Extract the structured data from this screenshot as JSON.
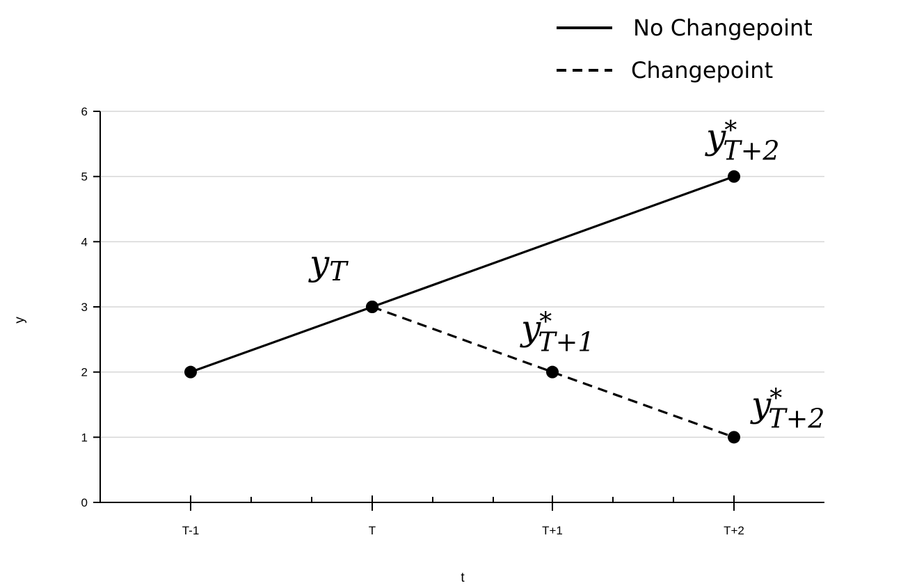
{
  "chart_data": {
    "type": "line",
    "categories": [
      "T-1",
      "T",
      "T+1",
      "T+2"
    ],
    "ylim": [
      0,
      6
    ],
    "yticks": [
      "0",
      "1",
      "2",
      "3",
      "4",
      "5",
      "6"
    ],
    "xlabel": "t",
    "ylabel": "y",
    "grid": true,
    "legend_position": "top-right",
    "legend": [
      {
        "label": "No Changepoint",
        "style": "solid"
      },
      {
        "label": "Changepoint",
        "style": "dashed"
      }
    ],
    "series": [
      {
        "name": "No Changepoint",
        "style": "solid",
        "points": [
          {
            "x": "T-1",
            "y": 2
          },
          {
            "x": "T",
            "y": 3
          },
          {
            "x": "T+2",
            "y": 5
          }
        ]
      },
      {
        "name": "Changepoint",
        "style": "dashed",
        "points": [
          {
            "x": "T",
            "y": 3
          },
          {
            "x": "T+1",
            "y": 2
          },
          {
            "x": "T+2",
            "y": 1
          }
        ]
      }
    ],
    "annotations": [
      {
        "main": "y",
        "sub": "T",
        "star": "",
        "x": "T",
        "y": 3
      },
      {
        "main": "y",
        "sub": "T+1",
        "star": "*",
        "x": "T+1",
        "y": 2
      },
      {
        "main": "y",
        "sub": "T+2",
        "star": "*",
        "x": "T+2",
        "y": 5
      },
      {
        "main": "y",
        "sub": "T+2",
        "star": "*",
        "x": "T+2",
        "y": 1
      }
    ],
    "colors": {
      "line": "#000000",
      "grid": "#d6d6d6",
      "background": "#ffffff"
    }
  }
}
